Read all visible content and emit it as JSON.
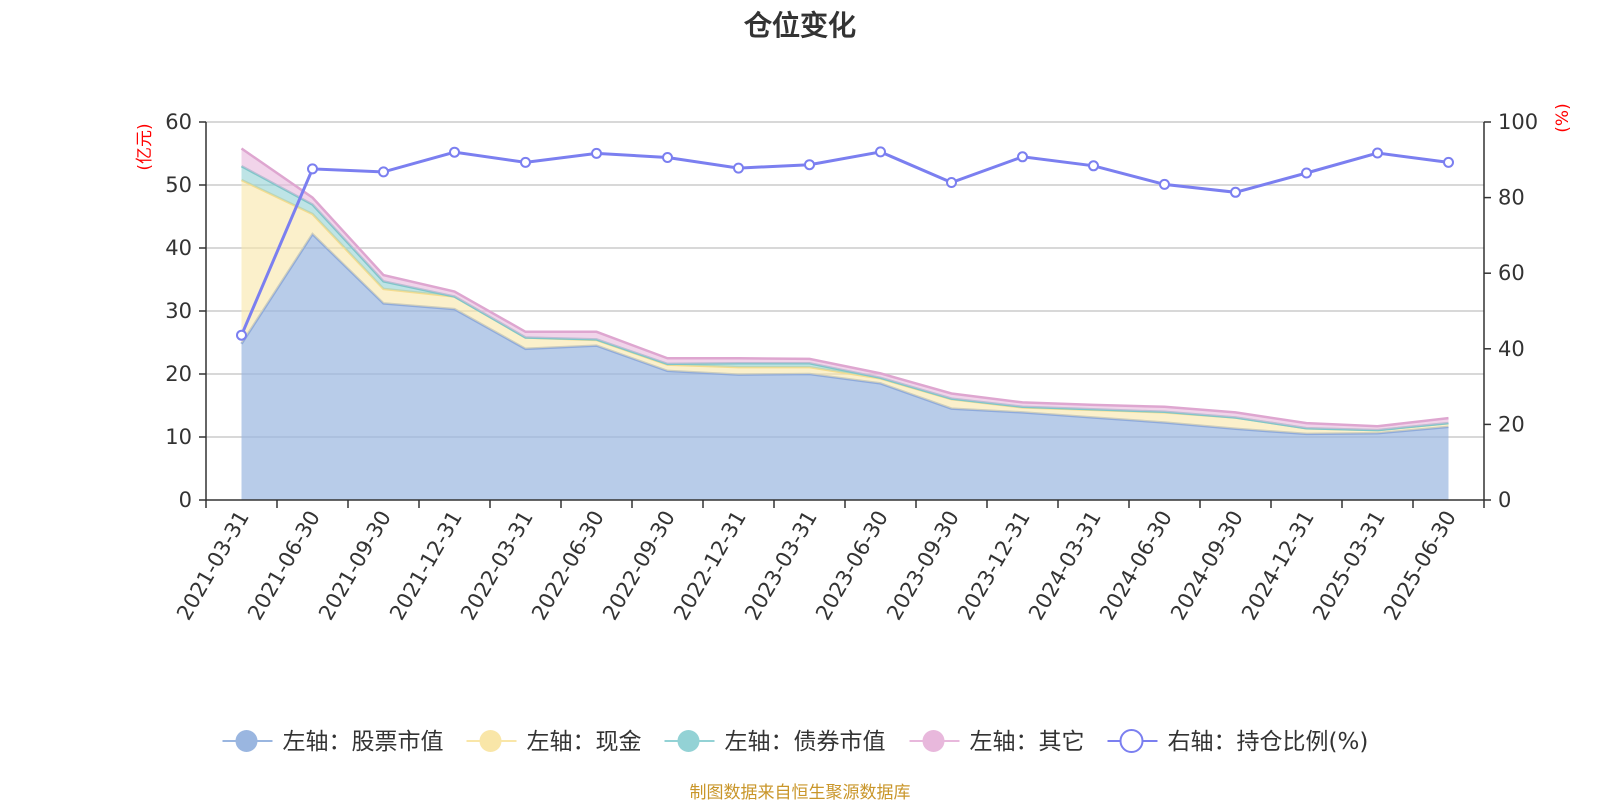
{
  "chart_data": {
    "type": "area",
    "title": "仓位变化",
    "source": "制图数据来自恒生聚源数据库",
    "categories": [
      "2021-03-31",
      "2021-06-30",
      "2021-09-30",
      "2021-12-31",
      "2022-03-31",
      "2022-06-30",
      "2022-09-30",
      "2022-12-31",
      "2023-03-31",
      "2023-06-30",
      "2023-09-30",
      "2023-12-31",
      "2024-03-31",
      "2024-06-30",
      "2024-09-30",
      "2024-12-31",
      "2025-03-31",
      "2025-06-30"
    ],
    "left_axis": {
      "unit": "(亿元)",
      "ylim": [
        0,
        60
      ],
      "ticks": [
        0,
        10,
        20,
        30,
        40,
        50,
        60
      ]
    },
    "right_axis": {
      "unit": "(%)",
      "ylim": [
        0,
        100
      ],
      "ticks": [
        0,
        20,
        40,
        60,
        80,
        100
      ]
    },
    "grid": true,
    "legend_position": "bottom",
    "series": [
      {
        "name": "左轴：股票市值",
        "axis": "left",
        "type": "area",
        "stacked": true,
        "color": "#9ab6e0",
        "values": [
          24.8,
          42.2,
          31.2,
          30.3,
          24.0,
          24.5,
          20.5,
          19.9,
          20.0,
          18.5,
          14.5,
          13.9,
          13.1,
          12.3,
          11.3,
          10.5,
          10.6,
          11.6
        ]
      },
      {
        "name": "左轴：现金",
        "axis": "left",
        "type": "area",
        "stacked": true,
        "color": "#f9e6a8",
        "values": [
          26.0,
          3.2,
          2.3,
          2.0,
          1.8,
          0.9,
          1.0,
          1.2,
          1.1,
          0.8,
          1.5,
          0.8,
          1.2,
          1.6,
          1.8,
          0.9,
          0.5,
          0.6
        ]
      },
      {
        "name": "左轴：债券市值",
        "axis": "left",
        "type": "area",
        "stacked": true,
        "color": "#93d2d5",
        "values": [
          2.2,
          1.5,
          1.2,
          0.0,
          0.0,
          0.1,
          0.1,
          0.6,
          0.6,
          0.1,
          0.1,
          0.1,
          0.1,
          0.1,
          0.0,
          0.0,
          0.0,
          0.0
        ]
      },
      {
        "name": "左轴：其它",
        "axis": "left",
        "type": "area",
        "stacked": true,
        "color": "#e8b8dc",
        "values": [
          2.8,
          1.1,
          1.0,
          0.8,
          0.9,
          1.2,
          0.9,
          0.8,
          0.7,
          0.7,
          0.8,
          0.7,
          0.7,
          0.8,
          0.8,
          0.8,
          0.6,
          0.8
        ]
      },
      {
        "name": "右轴：持仓比例(%)",
        "axis": "right",
        "type": "line",
        "color": "#7b7ff0",
        "values": [
          43.6,
          87.6,
          86.8,
          92.0,
          89.3,
          91.7,
          90.6,
          87.8,
          88.7,
          92.1,
          84.0,
          90.8,
          88.4,
          83.5,
          81.4,
          86.5,
          91.8,
          89.3
        ]
      }
    ]
  }
}
